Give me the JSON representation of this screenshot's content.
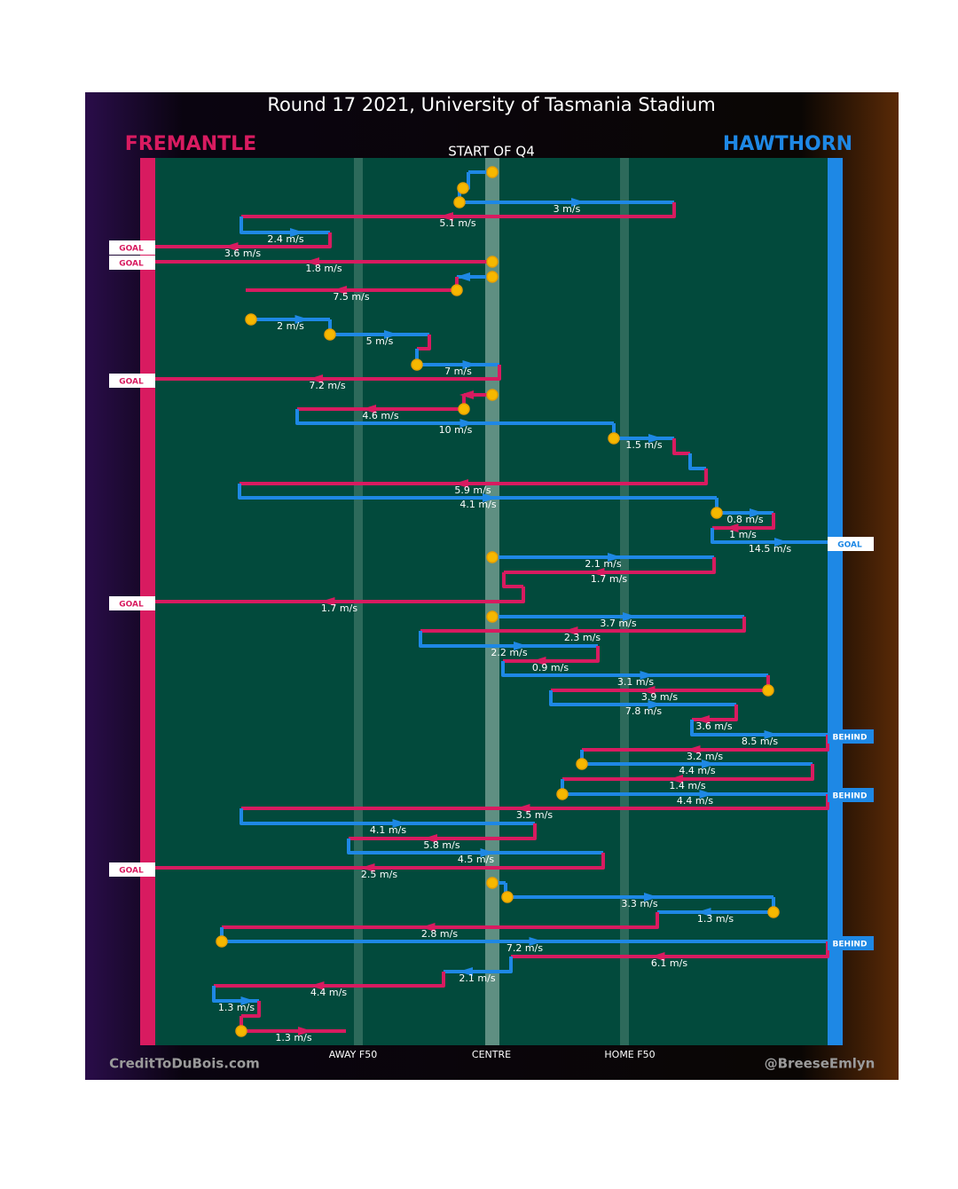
{
  "title": "Round 17 2021, University of Tasmania Stadium",
  "teams": {
    "left": "FREMANTLE",
    "right": "HAWTHORN"
  },
  "start_label": "START OF Q4",
  "axis_labels": [
    "AWAY F50",
    "CENTRE",
    "HOME F50"
  ],
  "credits": {
    "left": "CreditToDuBois.com",
    "right": "@BreeseEmlyn"
  },
  "speeds": [
    "3 m/s",
    "5.1 m/s",
    "2.4 m/s",
    "3.6 m/s",
    "1.8 m/s",
    "7.5 m/s",
    "2 m/s",
    "5 m/s",
    "7 m/s",
    "7.2 m/s",
    "4.6 m/s",
    "10 m/s",
    "1.5 m/s",
    "5.9 m/s",
    "4.1 m/s",
    "0.8 m/s",
    "1 m/s",
    "14.5 m/s",
    "2.1 m/s",
    "1.7 m/s",
    "1.7 m/s",
    "3.7 m/s",
    "2.3 m/s",
    "2.2 m/s",
    "0.9 m/s",
    "3.1 m/s",
    "3.9 m/s",
    "7.8 m/s",
    "3.6 m/s",
    "8.5 m/s",
    "3.2 m/s",
    "4.4 m/s",
    "1.4 m/s",
    "4.4 m/s",
    "3.5 m/s",
    "4.1 m/s",
    "5.8 m/s",
    "4.5 m/s",
    "2.5 m/s",
    "3.3 m/s",
    "1.3 m/s",
    "2.8 m/s",
    "7.2 m/s",
    "6.1 m/s",
    "2.1 m/s",
    "4.4 m/s",
    "1.3 m/s",
    "1.3 m/s"
  ],
  "outcomes": [
    "GOAL",
    "GOAL",
    "GOAL",
    "GOAL",
    "GOAL",
    "BEHIND",
    "BEHIND",
    "GOAL",
    "BEHIND"
  ]
}
